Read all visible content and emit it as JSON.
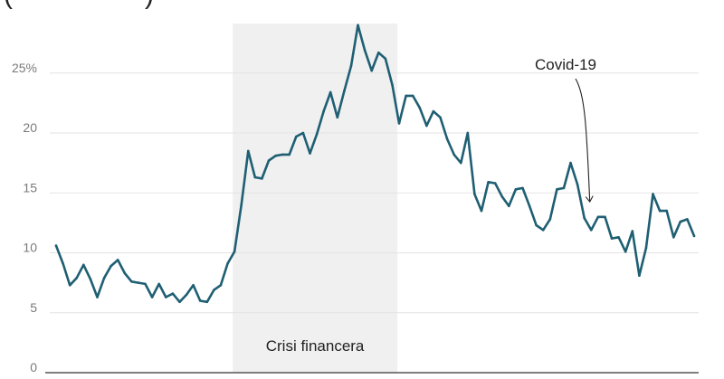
{
  "header_fragment": {
    "left": "(",
    "right": ")"
  },
  "chart_data": {
    "type": "line",
    "title": "",
    "xlabel": "",
    "ylabel": "",
    "ylim": [
      0,
      29
    ],
    "y_ticks": [
      {
        "value": 0,
        "label": "0"
      },
      {
        "value": 5,
        "label": "5"
      },
      {
        "value": 10,
        "label": "10"
      },
      {
        "value": 15,
        "label": "15"
      },
      {
        "value": 20,
        "label": "20"
      },
      {
        "value": 25,
        "label": "25%"
      }
    ],
    "grid": true,
    "line_color": "#1f5f73",
    "band_color": "#f0f0f0",
    "annotation_color": "#222222",
    "shaded_region": {
      "label": "Crisi financera",
      "from_index": 26,
      "to_index": 50
    },
    "annotation": {
      "label": "Covid-19",
      "point_index": 77
    },
    "series": [
      {
        "values": [
          10.6,
          9.1,
          7.3,
          7.9,
          9.0,
          7.8,
          6.3,
          7.9,
          8.9,
          9.4,
          8.3,
          7.6,
          7.5,
          7.4,
          6.3,
          7.4,
          6.3,
          6.6,
          5.9,
          6.5,
          7.3,
          6.0,
          5.9,
          6.9,
          7.3,
          9.1,
          10.1,
          14.0,
          18.5,
          16.3,
          16.2,
          17.7,
          18.1,
          18.2,
          18.2,
          19.7,
          20.0,
          18.3,
          19.9,
          21.8,
          23.4,
          21.3,
          23.5,
          25.6,
          29.0,
          26.9,
          25.2,
          26.7,
          26.2,
          24.0,
          20.8,
          23.1,
          23.1,
          22.1,
          20.6,
          21.8,
          21.3,
          19.5,
          18.2,
          17.5,
          20.0,
          14.9,
          13.5,
          15.9,
          15.8,
          14.7,
          13.9,
          15.3,
          15.4,
          13.9,
          12.3,
          11.9,
          12.8,
          15.3,
          15.4,
          17.5,
          15.7,
          12.9,
          11.9,
          13.0,
          13.0,
          11.2,
          11.3,
          10.1,
          11.8,
          8.1,
          10.4,
          14.9,
          13.5,
          13.5,
          11.3,
          12.6,
          12.8,
          11.4
        ]
      }
    ]
  }
}
